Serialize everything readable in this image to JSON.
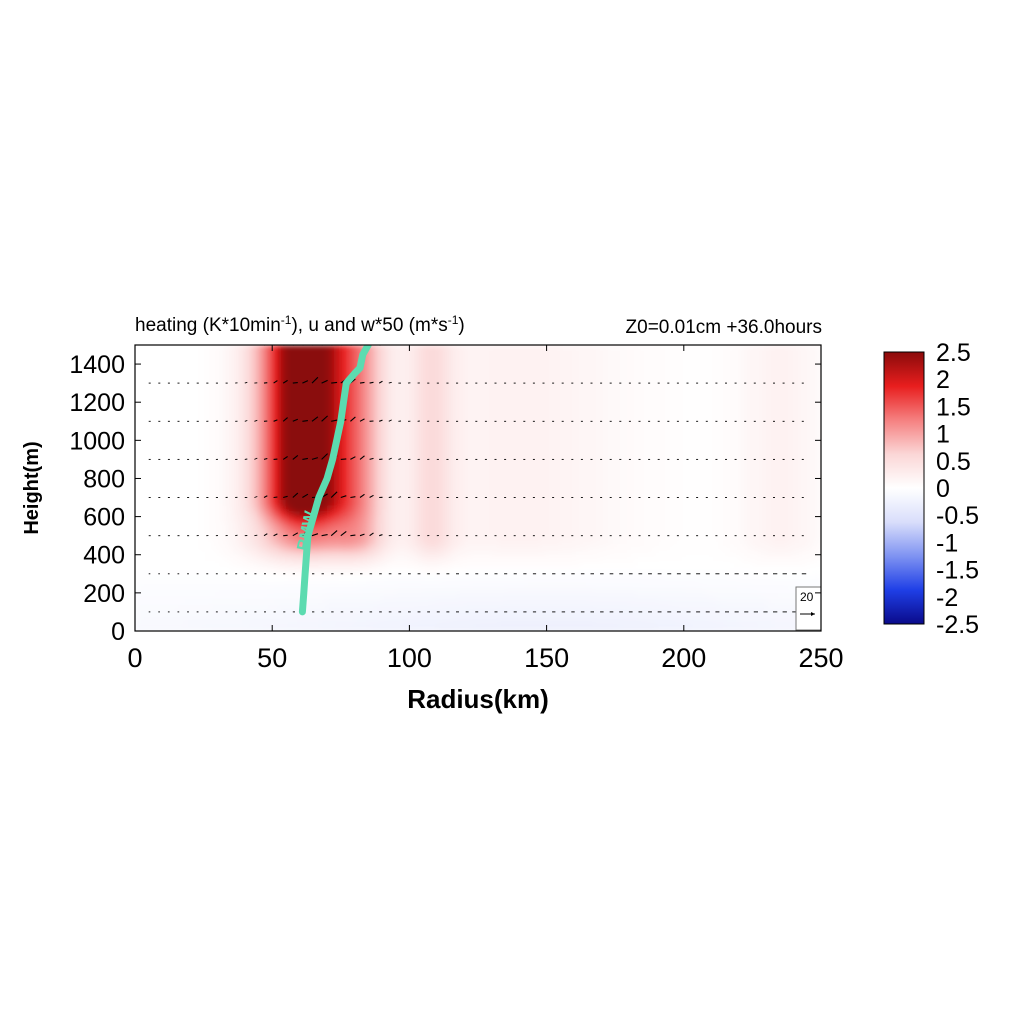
{
  "chart_data": {
    "type": "heatmap",
    "title_left": "heating (K*10min",
    "title_left_exp": "-1",
    "title_left_mid": "), u and w*50 (m*s",
    "title_left_exp2": "-1",
    "title_left_end": ")",
    "title_right": "Z0=0.01cm  +36.0hours",
    "xlabel": "Radius(km)",
    "ylabel": "Height(m)",
    "xlim": [
      0,
      250
    ],
    "ylim": [
      0,
      1500
    ],
    "xticks": [
      0,
      50,
      100,
      150,
      200,
      250
    ],
    "yticks": [
      0,
      200,
      400,
      600,
      800,
      1000,
      1200,
      1400
    ],
    "colorbar": {
      "min": -2.5,
      "max": 2.5,
      "ticks": [
        "2.5",
        "2",
        "1.5",
        "1",
        "0.5",
        "0",
        "-0.5",
        "-1",
        "-1.5",
        "-2",
        "-2.5"
      ],
      "colormap": [
        "#0a0a8a",
        "#1f3fe6",
        "#7f93f2",
        "#d9defb",
        "#ffffff",
        "#fbd6d6",
        "#f58080",
        "#e81e1e",
        "#8a0a0a"
      ]
    },
    "heating_bands": [
      {
        "r_center": 62,
        "r_width": 14,
        "z_min": 700,
        "amp": 1.9
      },
      {
        "r_center": 62,
        "r_width": 18,
        "z_min": 500,
        "amp": 1.2
      },
      {
        "r_center": 82,
        "r_width": 10,
        "z_min": 500,
        "amp": 0.7
      },
      {
        "r_center": 108,
        "r_width": 8,
        "z_min": 500,
        "amp": 0.45
      },
      {
        "r_center": 140,
        "r_width": 40,
        "z_min": 500,
        "amp": 0.2
      },
      {
        "r_center": 235,
        "r_width": 15,
        "z_min": 500,
        "amp": 0.2
      }
    ],
    "cooling_layer": {
      "z_max": 350,
      "amp": -0.3
    },
    "vector_levels": [
      100,
      300,
      500,
      700,
      900,
      1100,
      1300,
      1500
    ],
    "rmw_label": "RMW",
    "rmw_color": "#5cdbb0",
    "rmw": [
      [
        61,
        100
      ],
      [
        61.5,
        200
      ],
      [
        62,
        300
      ],
      [
        62.5,
        400
      ],
      [
        63,
        500
      ],
      [
        65,
        600
      ],
      [
        67,
        700
      ],
      [
        70,
        800
      ],
      [
        72,
        900
      ],
      [
        73.5,
        1000
      ],
      [
        75,
        1100
      ],
      [
        76,
        1200
      ],
      [
        77,
        1300
      ],
      [
        80,
        1350
      ],
      [
        82,
        1380
      ],
      [
        83,
        1450
      ],
      [
        85,
        1500
      ]
    ],
    "ref_vector_label": "20"
  }
}
